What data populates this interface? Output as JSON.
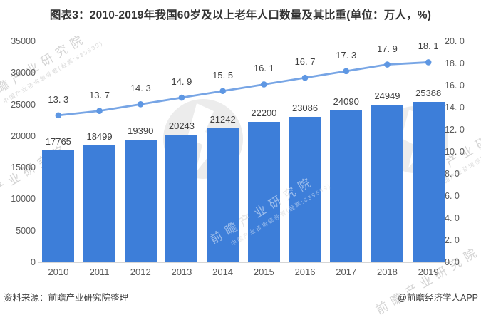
{
  "title": "图表3：2010-2019年我国60岁及以上老年人口数量及其比重(单位：万人，%)",
  "chart_data": {
    "type": "bar+line",
    "categories": [
      "2010",
      "2011",
      "2012",
      "2013",
      "2014",
      "2015",
      "2016",
      "2017",
      "2018",
      "2019"
    ],
    "series": [
      {
        "id": "elderly-population-bar",
        "type": "bar",
        "axis": "left",
        "values": [
          17765,
          18499,
          19390,
          20243,
          21242,
          22200,
          23086,
          24090,
          24949,
          25388
        ],
        "labels": [
          "17765",
          "18499",
          "19390",
          "20243",
          "21242",
          "22200",
          "23086",
          "24090",
          "24949",
          "25388"
        ],
        "color": "#3d7ed9"
      },
      {
        "id": "elderly-share-line",
        "type": "line",
        "axis": "right",
        "values": [
          13.3,
          13.7,
          14.3,
          14.9,
          15.5,
          16.1,
          16.7,
          17.3,
          17.9,
          18.1
        ],
        "labels": [
          "13. 3",
          "13. 7",
          "14. 3",
          "14. 9",
          "15. 5",
          "16. 1",
          "16. 7",
          "17. 3",
          "17. 9",
          "18. 1"
        ],
        "color": "#77a5e5",
        "marker_color": "#5e97e3"
      }
    ],
    "left_axis": {
      "min": 0,
      "max": 35000,
      "ticks": [
        "35000",
        "30000",
        "25000",
        "20000",
        "15000",
        "10000",
        "5000",
        "0"
      ]
    },
    "right_axis": {
      "min": 0,
      "max": 20,
      "ticks": [
        "20. 0",
        "18. 0",
        "16. 0",
        "14. 0",
        "12. 0",
        "10. 0",
        "8. 0",
        "6. 0",
        "4. 0",
        "2. 0",
        "0. 0"
      ]
    },
    "grid": false,
    "legend": "none"
  },
  "footer": {
    "source": "资料来源：前瞻产业研究院整理",
    "credit": "@前瞻经济学人APP"
  },
  "watermark": {
    "logo_text": "前瞻产业研究院",
    "sub_text": "中国产业咨询领导者(股票:839599)",
    "text_color": "#d4d4d4",
    "circle_color": "#ececec"
  }
}
